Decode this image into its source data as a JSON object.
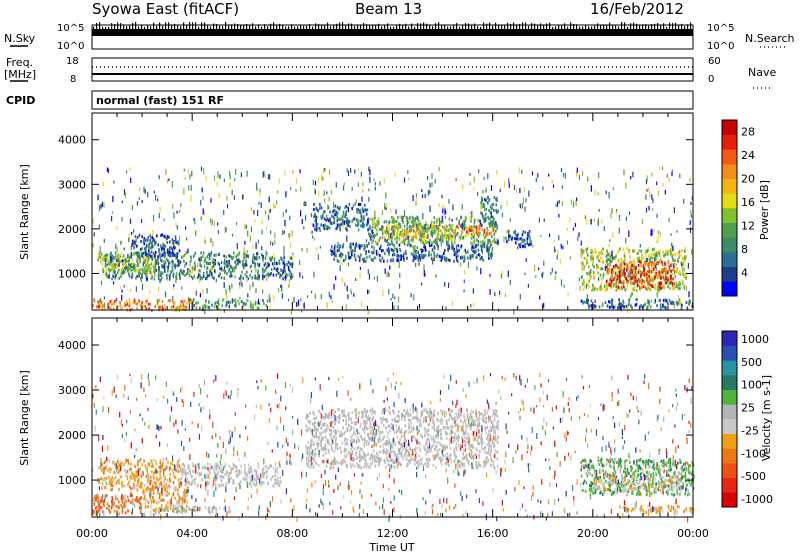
{
  "header": {
    "title": "Syowa East (fitACF)",
    "beam": "Beam 13",
    "date": "16/Feb/2012"
  },
  "strips": {
    "nsky_label": "N.Sky",
    "nsky_ticks": [
      "10^5",
      "10^0"
    ],
    "nsearch_label": "N.Search",
    "nsearch_ticks": [
      "10^5",
      "10^0"
    ],
    "freq_label": "Freq.",
    "freq_unit": "[MHz]",
    "freq_ticks": [
      "18",
      "8"
    ],
    "nave_label": "Nave",
    "nave_ticks": [
      "60",
      "0"
    ],
    "cpid_label": "CPID",
    "cpid_text": "normal (fast) 151 RF"
  },
  "colors": {
    "power_scale": [
      "#0000ff",
      "#1e3c8c",
      "#2a6e96",
      "#3c8c64",
      "#50a050",
      "#7dc32d",
      "#e6dc14",
      "#f5b414",
      "#f58c1e",
      "#f55a14",
      "#e61e0a",
      "#c80000"
    ],
    "velocity_scale": [
      "#2828b4",
      "#2850b4",
      "#2896a0",
      "#287864",
      "#50b43c",
      "#b4b4b4",
      "#c8c8c8",
      "#f0a014",
      "#f07814",
      "#f05014",
      "#e62814",
      "#dc0000"
    ]
  },
  "chart_data": [
    {
      "type": "heatmap",
      "panel": "power",
      "ylabel": "Slant Range [km]",
      "ylim": [
        180,
        4600
      ],
      "yticks": [
        "1000",
        "2000",
        "3000",
        "4000"
      ],
      "xlim_hours": [
        0,
        24
      ],
      "xticks": [
        "00:00",
        "04:00",
        "08:00",
        "12:00",
        "16:00",
        "20:00",
        "00:00"
      ],
      "colorbar_label": "Power [dB]",
      "colorbar_ticks": [
        "4",
        "8",
        "12",
        "16",
        "20",
        "24",
        "28"
      ],
      "colorbar_range": [
        0,
        30
      ],
      "regions": [
        {
          "t": [
            0.5,
            7.0
          ],
          "r": [
            900,
            1500
          ],
          "v": 8
        },
        {
          "t": [
            0.2,
            2.5
          ],
          "r": [
            1000,
            1500
          ],
          "v": 14
        },
        {
          "t": [
            1.5,
            3.5
          ],
          "r": [
            1400,
            1900
          ],
          "v": 5
        },
        {
          "t": [
            0.0,
            4.0
          ],
          "r": [
            200,
            450
          ],
          "v": 22
        },
        {
          "t": [
            4.0,
            7.0
          ],
          "r": [
            250,
            450
          ],
          "v": 10
        },
        {
          "t": [
            7.0,
            8.0
          ],
          "r": [
            900,
            1400
          ],
          "v": 6
        },
        {
          "t": [
            8.8,
            11.0
          ],
          "r": [
            2000,
            2600
          ],
          "v": 6
        },
        {
          "t": [
            9.5,
            16.0
          ],
          "r": [
            1300,
            1700
          ],
          "v": 6
        },
        {
          "t": [
            11.0,
            16.2
          ],
          "r": [
            1700,
            2300
          ],
          "v": 11
        },
        {
          "t": [
            11.5,
            14.5
          ],
          "r": [
            1800,
            2100
          ],
          "v": 18
        },
        {
          "t": [
            14.5,
            16.0
          ],
          "r": [
            1900,
            2100
          ],
          "v": 22
        },
        {
          "t": [
            15.5,
            16.2
          ],
          "r": [
            2100,
            2800
          ],
          "v": 8
        },
        {
          "t": [
            16.5,
            17.5
          ],
          "r": [
            1600,
            2000
          ],
          "v": 5
        },
        {
          "t": [
            19.5,
            23.7
          ],
          "r": [
            650,
            1600
          ],
          "v": 15
        },
        {
          "t": [
            20.5,
            23.2
          ],
          "r": [
            700,
            1300
          ],
          "v": 26
        },
        {
          "t": [
            19.5,
            24.0
          ],
          "r": [
            250,
            450
          ],
          "v": 6
        }
      ]
    },
    {
      "type": "heatmap",
      "panel": "velocity",
      "ylabel": "Slant Range [km]",
      "ylim": [
        180,
        4600
      ],
      "yticks": [
        "1000",
        "2000",
        "3000",
        "4000"
      ],
      "xlim_hours": [
        0,
        24
      ],
      "xticks": [
        "00:00",
        "04:00",
        "08:00",
        "12:00",
        "16:00",
        "20:00",
        "00:00"
      ],
      "xlabel": "Time UT",
      "colorbar_label": "Velocity [m s-1]",
      "colorbar_ticks": [
        "1000",
        "500",
        "100",
        "25",
        "-25",
        "-100",
        "-500",
        "-1000"
      ],
      "colorbar_range": [
        -1200,
        1200
      ],
      "regions": [
        {
          "t": [
            0.3,
            3.5
          ],
          "r": [
            800,
            1500
          ],
          "v": -300
        },
        {
          "t": [
            0.0,
            2.0
          ],
          "r": [
            300,
            700
          ],
          "v": -600
        },
        {
          "t": [
            2.0,
            3.8
          ],
          "r": [
            350,
            900
          ],
          "v": -300
        },
        {
          "t": [
            3.5,
            7.5
          ],
          "r": [
            900,
            1400
          ],
          "v": 0
        },
        {
          "t": [
            8.5,
            16.2
          ],
          "r": [
            1300,
            2600
          ],
          "v": 0
        },
        {
          "t": [
            2.5,
            5.5
          ],
          "r": [
            300,
            450
          ],
          "v": 80
        },
        {
          "t": [
            19.5,
            24.0
          ],
          "r": [
            700,
            1500
          ],
          "v": 300
        },
        {
          "t": [
            20.0,
            23.5
          ],
          "r": [
            800,
            1100
          ],
          "v": -150
        },
        {
          "t": [
            21.0,
            24.0
          ],
          "r": [
            300,
            450
          ],
          "v": -250
        }
      ]
    }
  ]
}
